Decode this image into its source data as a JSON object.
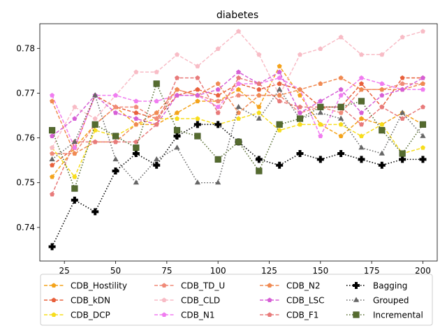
{
  "chart_data": {
    "type": "line",
    "title": "diabetes",
    "xlabel": "",
    "ylabel": "",
    "xlim": [
      13,
      207
    ],
    "ylim": [
      0.7325,
      0.7855
    ],
    "xticks": [
      25,
      50,
      75,
      100,
      125,
      150,
      175,
      200
    ],
    "yticks": [
      0.74,
      0.75,
      0.76,
      0.77,
      0.78
    ],
    "legend": "below",
    "x": [
      19,
      30,
      40,
      50,
      60,
      70,
      80,
      90,
      100,
      110,
      120,
      130,
      140,
      150,
      160,
      170,
      180,
      190,
      200
    ],
    "series": [
      {
        "name": "CDB_Hostility",
        "color": "#f4a31b",
        "marker": "pentagon",
        "linestyle": "dashed",
        "values": [
          0.7513,
          0.7578,
          0.763,
          0.7669,
          0.763,
          0.763,
          0.7656,
          0.7682,
          0.7682,
          0.7708,
          0.7669,
          0.776,
          0.7695,
          0.763,
          0.7604,
          0.7643,
          0.763,
          0.7656,
          0.763
        ]
      },
      {
        "name": "CDB_kDN",
        "color": "#e8603c",
        "marker": "pentagon",
        "linestyle": "dashed",
        "values": [
          0.7539,
          0.7578,
          0.7695,
          0.7669,
          0.7656,
          0.7643,
          0.7695,
          0.7708,
          0.7695,
          0.7721,
          0.7708,
          0.7721,
          0.7708,
          0.7669,
          0.7669,
          0.7721,
          0.7669,
          0.7734,
          0.7734
        ]
      },
      {
        "name": "CDB_DCP",
        "color": "#f7dd1c",
        "marker": "pentagon",
        "linestyle": "dashed",
        "values": [
          0.7578,
          0.7513,
          0.7617,
          0.7604,
          0.763,
          0.7643,
          0.7643,
          0.7643,
          0.763,
          0.7643,
          0.7656,
          0.7617,
          0.763,
          0.763,
          0.763,
          0.7604,
          0.763,
          0.7565,
          0.7578
        ]
      },
      {
        "name": "CDB_TD_U",
        "color": "#f08a78",
        "marker": "pentagon",
        "linestyle": "dashed",
        "values": [
          0.7565,
          0.7565,
          0.763,
          0.7669,
          0.7669,
          0.7643,
          0.7708,
          0.7695,
          0.7682,
          0.7695,
          0.7695,
          0.7695,
          0.7656,
          0.7669,
          0.7656,
          0.7708,
          0.7708,
          0.7721,
          0.7721
        ]
      },
      {
        "name": "CDB_CLD",
        "color": "#f8bcc6",
        "marker": "pentagon",
        "linestyle": "dashed",
        "values": [
          0.7578,
          0.7669,
          0.7643,
          0.7695,
          0.7747,
          0.7747,
          0.7786,
          0.776,
          0.7799,
          0.7838,
          0.7786,
          0.7695,
          0.7786,
          0.7799,
          0.7825,
          0.7786,
          0.7786,
          0.7825,
          0.7838
        ]
      },
      {
        "name": "CDB_N1",
        "color": "#f07cf0",
        "marker": "pentagon",
        "linestyle": "dashed",
        "values": [
          0.7695,
          0.7578,
          0.7695,
          0.7695,
          0.7682,
          0.7682,
          0.7695,
          0.7695,
          0.7669,
          0.7721,
          0.7721,
          0.7734,
          0.7708,
          0.7604,
          0.7695,
          0.7734,
          0.7721,
          0.7708,
          0.7708
        ]
      },
      {
        "name": "CDB_N2",
        "color": "#f08a52",
        "marker": "pentagon",
        "linestyle": "dashed",
        "values": [
          0.7682,
          0.7565,
          0.7591,
          0.7591,
          0.763,
          0.7656,
          0.7708,
          0.7695,
          0.7721,
          0.7656,
          0.7695,
          0.7695,
          0.7708,
          0.7721,
          0.7734,
          0.7708,
          0.7708,
          0.7708,
          0.7721
        ]
      },
      {
        "name": "CDB_LSC",
        "color": "#d65fd6",
        "marker": "pentagon",
        "linestyle": "dashed",
        "values": [
          0.7604,
          0.7643,
          0.7695,
          0.7656,
          0.7643,
          0.763,
          0.7695,
          0.7695,
          0.7708,
          0.7747,
          0.7721,
          0.7747,
          0.7656,
          0.7682,
          0.7708,
          0.7656,
          0.7695,
          0.7708,
          0.7734
        ]
      },
      {
        "name": "CDB_F1",
        "color": "#e87a7a",
        "marker": "pentagon",
        "linestyle": "dashed",
        "values": [
          0.7474,
          0.7591,
          0.7591,
          0.7591,
          0.7591,
          0.763,
          0.7734,
          0.7734,
          0.7656,
          0.7734,
          0.7721,
          0.7682,
          0.7669,
          0.7669,
          0.7669,
          0.763,
          0.7669,
          0.7643,
          0.7669
        ]
      },
      {
        "name": "Bagging",
        "color": "#000000",
        "marker": "plus",
        "linestyle": "dotted",
        "values": [
          0.7357,
          0.7461,
          0.7435,
          0.7526,
          0.7565,
          0.7539,
          0.7604,
          0.763,
          0.763,
          0.7591,
          0.7552,
          0.7539,
          0.7565,
          0.7552,
          0.7565,
          0.7552,
          0.7539,
          0.7552,
          0.7552
        ]
      },
      {
        "name": "Grouped",
        "color": "#666666",
        "marker": "triangle",
        "linestyle": "dotted",
        "values": [
          0.7552,
          0.7591,
          0.7695,
          0.7552,
          0.75,
          0.7552,
          0.7578,
          0.75,
          0.75,
          0.7669,
          0.7643,
          0.7708,
          0.7643,
          0.7656,
          0.7643,
          0.7578,
          0.7565,
          0.7656,
          0.7604
        ]
      },
      {
        "name": "Incremental",
        "color": "#556b2f",
        "marker": "square",
        "linestyle": "dotted",
        "values": [
          0.7617,
          0.7487,
          0.763,
          0.7604,
          0.7578,
          0.7721,
          0.7617,
          0.7604,
          0.7552,
          0.7591,
          0.7526,
          0.763,
          0.7643,
          0.7669,
          0.7669,
          0.7682,
          0.7617,
          0.7565,
          0.763
        ]
      }
    ]
  }
}
